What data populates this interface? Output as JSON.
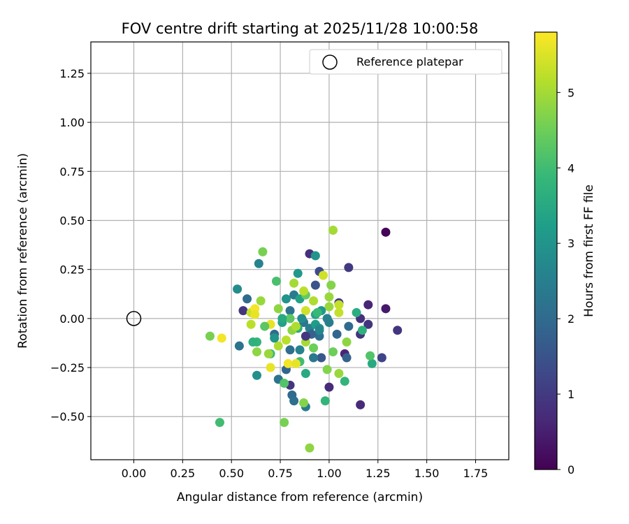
{
  "chart_data": {
    "type": "scatter",
    "title": "FOV centre drift starting at 2025/11/28 10:00:58",
    "xlabel": "Angular distance from reference (arcmin)",
    "ylabel": "Rotation from reference (arcmin)",
    "xlim": [
      -0.22,
      1.92
    ],
    "ylim": [
      -0.72,
      1.41
    ],
    "xticks": [
      0.0,
      0.25,
      0.5,
      0.75,
      1.0,
      1.25,
      1.5,
      1.75
    ],
    "yticks": [
      -0.5,
      -0.25,
      0.0,
      0.25,
      0.5,
      0.75,
      1.0,
      1.25
    ],
    "xtick_labels": [
      "0.00",
      "0.25",
      "0.50",
      "0.75",
      "1.00",
      "1.25",
      "1.50",
      "1.75"
    ],
    "ytick_labels": [
      "−0.50",
      "−0.25",
      "0.00",
      "0.25",
      "0.50",
      "0.75",
      "1.00",
      "1.25"
    ],
    "grid": true,
    "legend": {
      "placement": "top-right",
      "entries": [
        "Reference platepar"
      ]
    },
    "reference_point": {
      "x": 0.0,
      "y": 0.0
    },
    "colorbar": {
      "label": "Hours from first FF file",
      "colormap": "viridis",
      "range": [
        0,
        5.8
      ],
      "ticks": [
        0,
        1,
        2,
        3,
        4,
        5
      ],
      "tick_labels": [
        "0",
        "1",
        "2",
        "3",
        "4",
        "5"
      ],
      "stops": [
        "#440154",
        "#482878",
        "#3e4989",
        "#31688e",
        "#26828e",
        "#1f9e89",
        "#35b779",
        "#6ece58",
        "#b5de2b",
        "#fde725"
      ]
    },
    "points": [
      {
        "x": 1.29,
        "y": 0.44,
        "c": 0.05
      },
      {
        "x": 1.29,
        "y": 0.05,
        "c": 0.4
      },
      {
        "x": 1.2,
        "y": 0.07,
        "c": 0.6
      },
      {
        "x": 1.35,
        "y": -0.06,
        "c": 0.9
      },
      {
        "x": 1.27,
        "y": -0.2,
        "c": 1.2
      },
      {
        "x": 1.16,
        "y": -0.44,
        "c": 0.7
      },
      {
        "x": 1.16,
        "y": 0.0,
        "c": 0.8
      },
      {
        "x": 1.2,
        "y": -0.03,
        "c": 0.9
      },
      {
        "x": 1.16,
        "y": -0.08,
        "c": 0.85
      },
      {
        "x": 1.1,
        "y": 0.26,
        "c": 1.0
      },
      {
        "x": 0.9,
        "y": 0.33,
        "c": 0.8
      },
      {
        "x": 0.56,
        "y": 0.04,
        "c": 0.9
      },
      {
        "x": 1.0,
        "y": -0.35,
        "c": 0.7
      },
      {
        "x": 0.8,
        "y": -0.34,
        "c": 0.9
      },
      {
        "x": 1.08,
        "y": -0.18,
        "c": 0.6
      },
      {
        "x": 1.05,
        "y": 0.08,
        "c": 1.1
      },
      {
        "x": 0.95,
        "y": 0.24,
        "c": 1.4
      },
      {
        "x": 0.93,
        "y": 0.17,
        "c": 1.5
      },
      {
        "x": 1.09,
        "y": -0.2,
        "c": 1.8
      },
      {
        "x": 0.96,
        "y": -0.2,
        "c": 1.6
      },
      {
        "x": 1.04,
        "y": -0.08,
        "c": 1.9
      },
      {
        "x": 1.1,
        "y": -0.04,
        "c": 2.0
      },
      {
        "x": 0.54,
        "y": -0.14,
        "c": 2.2
      },
      {
        "x": 0.58,
        "y": 0.1,
        "c": 2.0
      },
      {
        "x": 0.8,
        "y": -0.16,
        "c": 2.1
      },
      {
        "x": 0.8,
        "y": 0.04,
        "c": 2.2
      },
      {
        "x": 0.72,
        "y": -0.08,
        "c": 2.0
      },
      {
        "x": 0.78,
        "y": -0.26,
        "c": 1.9
      },
      {
        "x": 0.74,
        "y": -0.31,
        "c": 2.2
      },
      {
        "x": 0.81,
        "y": -0.39,
        "c": 2.0
      },
      {
        "x": 0.82,
        "y": -0.42,
        "c": 2.1
      },
      {
        "x": 0.88,
        "y": -0.45,
        "c": 2.4
      },
      {
        "x": 0.87,
        "y": -0.02,
        "c": 2.3
      },
      {
        "x": 0.9,
        "y": -0.05,
        "c": 2.5
      },
      {
        "x": 0.95,
        "y": -0.09,
        "c": 2.1
      },
      {
        "x": 0.99,
        "y": 0.0,
        "c": 2.6
      },
      {
        "x": 0.82,
        "y": 0.12,
        "c": 2.4
      },
      {
        "x": 0.64,
        "y": 0.28,
        "c": 2.6
      },
      {
        "x": 0.53,
        "y": 0.15,
        "c": 2.8
      },
      {
        "x": 0.63,
        "y": -0.29,
        "c": 2.9
      },
      {
        "x": 0.84,
        "y": 0.23,
        "c": 3.1
      },
      {
        "x": 0.93,
        "y": 0.32,
        "c": 3.0
      },
      {
        "x": 0.93,
        "y": -0.03,
        "c": 3.2
      },
      {
        "x": 0.76,
        "y": -0.02,
        "c": 3.3
      },
      {
        "x": 0.78,
        "y": 0.1,
        "c": 3.0
      },
      {
        "x": 0.85,
        "y": 0.1,
        "c": 3.3
      },
      {
        "x": 0.95,
        "y": -0.05,
        "c": 2.9
      },
      {
        "x": 1.14,
        "y": 0.03,
        "c": 3.6
      },
      {
        "x": 1.22,
        "y": -0.23,
        "c": 3.5
      },
      {
        "x": 1.08,
        "y": -0.32,
        "c": 3.8
      },
      {
        "x": 1.17,
        "y": -0.06,
        "c": 3.7
      },
      {
        "x": 0.98,
        "y": -0.42,
        "c": 3.8
      },
      {
        "x": 0.84,
        "y": -0.05,
        "c": 3.6
      },
      {
        "x": 0.93,
        "y": 0.02,
        "c": 3.4
      },
      {
        "x": 0.7,
        "y": -0.18,
        "c": 3.9
      },
      {
        "x": 0.63,
        "y": -0.12,
        "c": 3.8
      },
      {
        "x": 0.44,
        "y": -0.53,
        "c": 4.0
      },
      {
        "x": 0.61,
        "y": -0.12,
        "c": 3.7
      },
      {
        "x": 0.73,
        "y": 0.19,
        "c": 4.1
      },
      {
        "x": 0.88,
        "y": -0.28,
        "c": 3.5
      },
      {
        "x": 0.8,
        "y": 0.0,
        "c": 4.3
      },
      {
        "x": 1.02,
        "y": -0.17,
        "c": 4.5
      },
      {
        "x": 1.21,
        "y": -0.19,
        "c": 4.2
      },
      {
        "x": 0.85,
        "y": -0.22,
        "c": 4.0
      },
      {
        "x": 0.77,
        "y": -0.33,
        "c": 4.2
      },
      {
        "x": 0.92,
        "y": -0.15,
        "c": 4.5
      },
      {
        "x": 0.88,
        "y": 0.12,
        "c": 4.4
      },
      {
        "x": 0.66,
        "y": 0.34,
        "c": 4.6
      },
      {
        "x": 0.77,
        "y": -0.53,
        "c": 4.6
      },
      {
        "x": 0.87,
        "y": -0.43,
        "c": 4.7
      },
      {
        "x": 0.39,
        "y": -0.09,
        "c": 4.6
      },
      {
        "x": 1.02,
        "y": 0.45,
        "c": 5.0
      },
      {
        "x": 0.9,
        "y": -0.66,
        "c": 4.8
      },
      {
        "x": 1.01,
        "y": 0.17,
        "c": 4.7
      },
      {
        "x": 1.0,
        "y": 0.06,
        "c": 4.9
      },
      {
        "x": 0.99,
        "y": -0.26,
        "c": 4.7
      },
      {
        "x": 1.05,
        "y": -0.28,
        "c": 4.9
      },
      {
        "x": 1.09,
        "y": -0.12,
        "c": 4.8
      },
      {
        "x": 0.65,
        "y": 0.09,
        "c": 4.9
      },
      {
        "x": 0.63,
        "y": -0.17,
        "c": 4.8
      },
      {
        "x": 0.69,
        "y": -0.18,
        "c": 4.9
      },
      {
        "x": 0.74,
        "y": 0.05,
        "c": 4.8
      },
      {
        "x": 0.81,
        "y": -0.06,
        "c": 4.8
      },
      {
        "x": 0.83,
        "y": -0.04,
        "c": 5.1
      },
      {
        "x": 0.88,
        "y": -0.12,
        "c": 5.0
      },
      {
        "x": 1.0,
        "y": 0.11,
        "c": 4.9
      },
      {
        "x": 1.05,
        "y": 0.03,
        "c": 5.3
      },
      {
        "x": 0.82,
        "y": 0.18,
        "c": 5.0
      },
      {
        "x": 0.87,
        "y": 0.14,
        "c": 5.2
      },
      {
        "x": 0.92,
        "y": 0.09,
        "c": 5.1
      },
      {
        "x": 0.78,
        "y": -0.11,
        "c": 5.2
      },
      {
        "x": 0.6,
        "y": 0.03,
        "c": 5.3
      },
      {
        "x": 0.6,
        "y": -0.03,
        "c": 5.2
      },
      {
        "x": 0.74,
        "y": -0.14,
        "c": 5.1
      },
      {
        "x": 0.88,
        "y": 0.04,
        "c": 5.4
      },
      {
        "x": 0.97,
        "y": 0.22,
        "c": 5.4
      },
      {
        "x": 1.05,
        "y": 0.07,
        "c": 5.3
      },
      {
        "x": 0.62,
        "y": 0.05,
        "c": 5.7
      },
      {
        "x": 0.62,
        "y": 0.02,
        "c": 5.6
      },
      {
        "x": 0.7,
        "y": -0.25,
        "c": 5.6
      },
      {
        "x": 0.79,
        "y": -0.23,
        "c": 5.7
      },
      {
        "x": 0.83,
        "y": -0.23,
        "c": 5.6
      },
      {
        "x": 0.45,
        "y": -0.1,
        "c": 5.7
      },
      {
        "x": 0.7,
        "y": -0.03,
        "c": 5.6
      },
      {
        "x": 0.72,
        "y": -0.1,
        "c": 5.5
      },
      {
        "x": 0.95,
        "y": -0.06,
        "c": 2.7
      },
      {
        "x": 1.0,
        "y": -0.02,
        "c": 2.5
      },
      {
        "x": 0.86,
        "y": 0.0,
        "c": 2.8
      },
      {
        "x": 0.91,
        "y": -0.08,
        "c": 1.8
      },
      {
        "x": 0.88,
        "y": -0.09,
        "c": 0.9
      },
      {
        "x": 0.96,
        "y": 0.04,
        "c": 3.1
      },
      {
        "x": 0.72,
        "y": -0.1,
        "c": 3.0
      },
      {
        "x": 0.85,
        "y": -0.16,
        "c": 2.6
      },
      {
        "x": 0.92,
        "y": -0.2,
        "c": 2.3
      },
      {
        "x": 0.76,
        "y": 0.0,
        "c": 3.5
      },
      {
        "x": 0.67,
        "y": -0.04,
        "c": 4.3
      },
      {
        "x": 0.94,
        "y": 0.03,
        "c": 3.9
      }
    ]
  }
}
